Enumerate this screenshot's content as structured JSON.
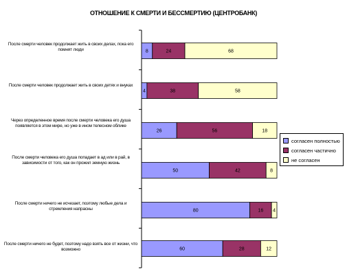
{
  "chart_data": {
    "type": "bar",
    "orientation": "horizontal",
    "stacked": true,
    "title": "ОТНОШЕНИЕ К СМЕРТИ И БЕССМЕРТИЮ (ЦЕНТРОБАНК)",
    "categories": [
      "После смерти человек продолжает жить в своих делах, пока его помнят люди",
      "После смерти человек продолжает жить в своих детях и внуках",
      "Через определенное время после смерти человека его душа появляется в этом мире, но уже в ином телесном облике",
      "После смерти человека его душа попадает в ад или в рай, в зависимости от того, как он прожил земную жизнь",
      "После смерти ничего не исчезает, поэтому любые дела и стремления напрасны",
      "После смерти ничего не будет, поэтому надо взять все от жизни, что возможно"
    ],
    "series": [
      {
        "name": "согласен полностью",
        "color": "#9999ff",
        "values": [
          8,
          4,
          26,
          50,
          80,
          60
        ]
      },
      {
        "name": "согласен частично",
        "color": "#993366",
        "values": [
          24,
          38,
          56,
          42,
          16,
          28
        ]
      },
      {
        "name": "не согласен",
        "color": "#ffffcc",
        "values": [
          68,
          58,
          18,
          8,
          4,
          12
        ]
      }
    ],
    "xlim": [
      0,
      100
    ],
    "grid": false,
    "legend_position": "right"
  }
}
